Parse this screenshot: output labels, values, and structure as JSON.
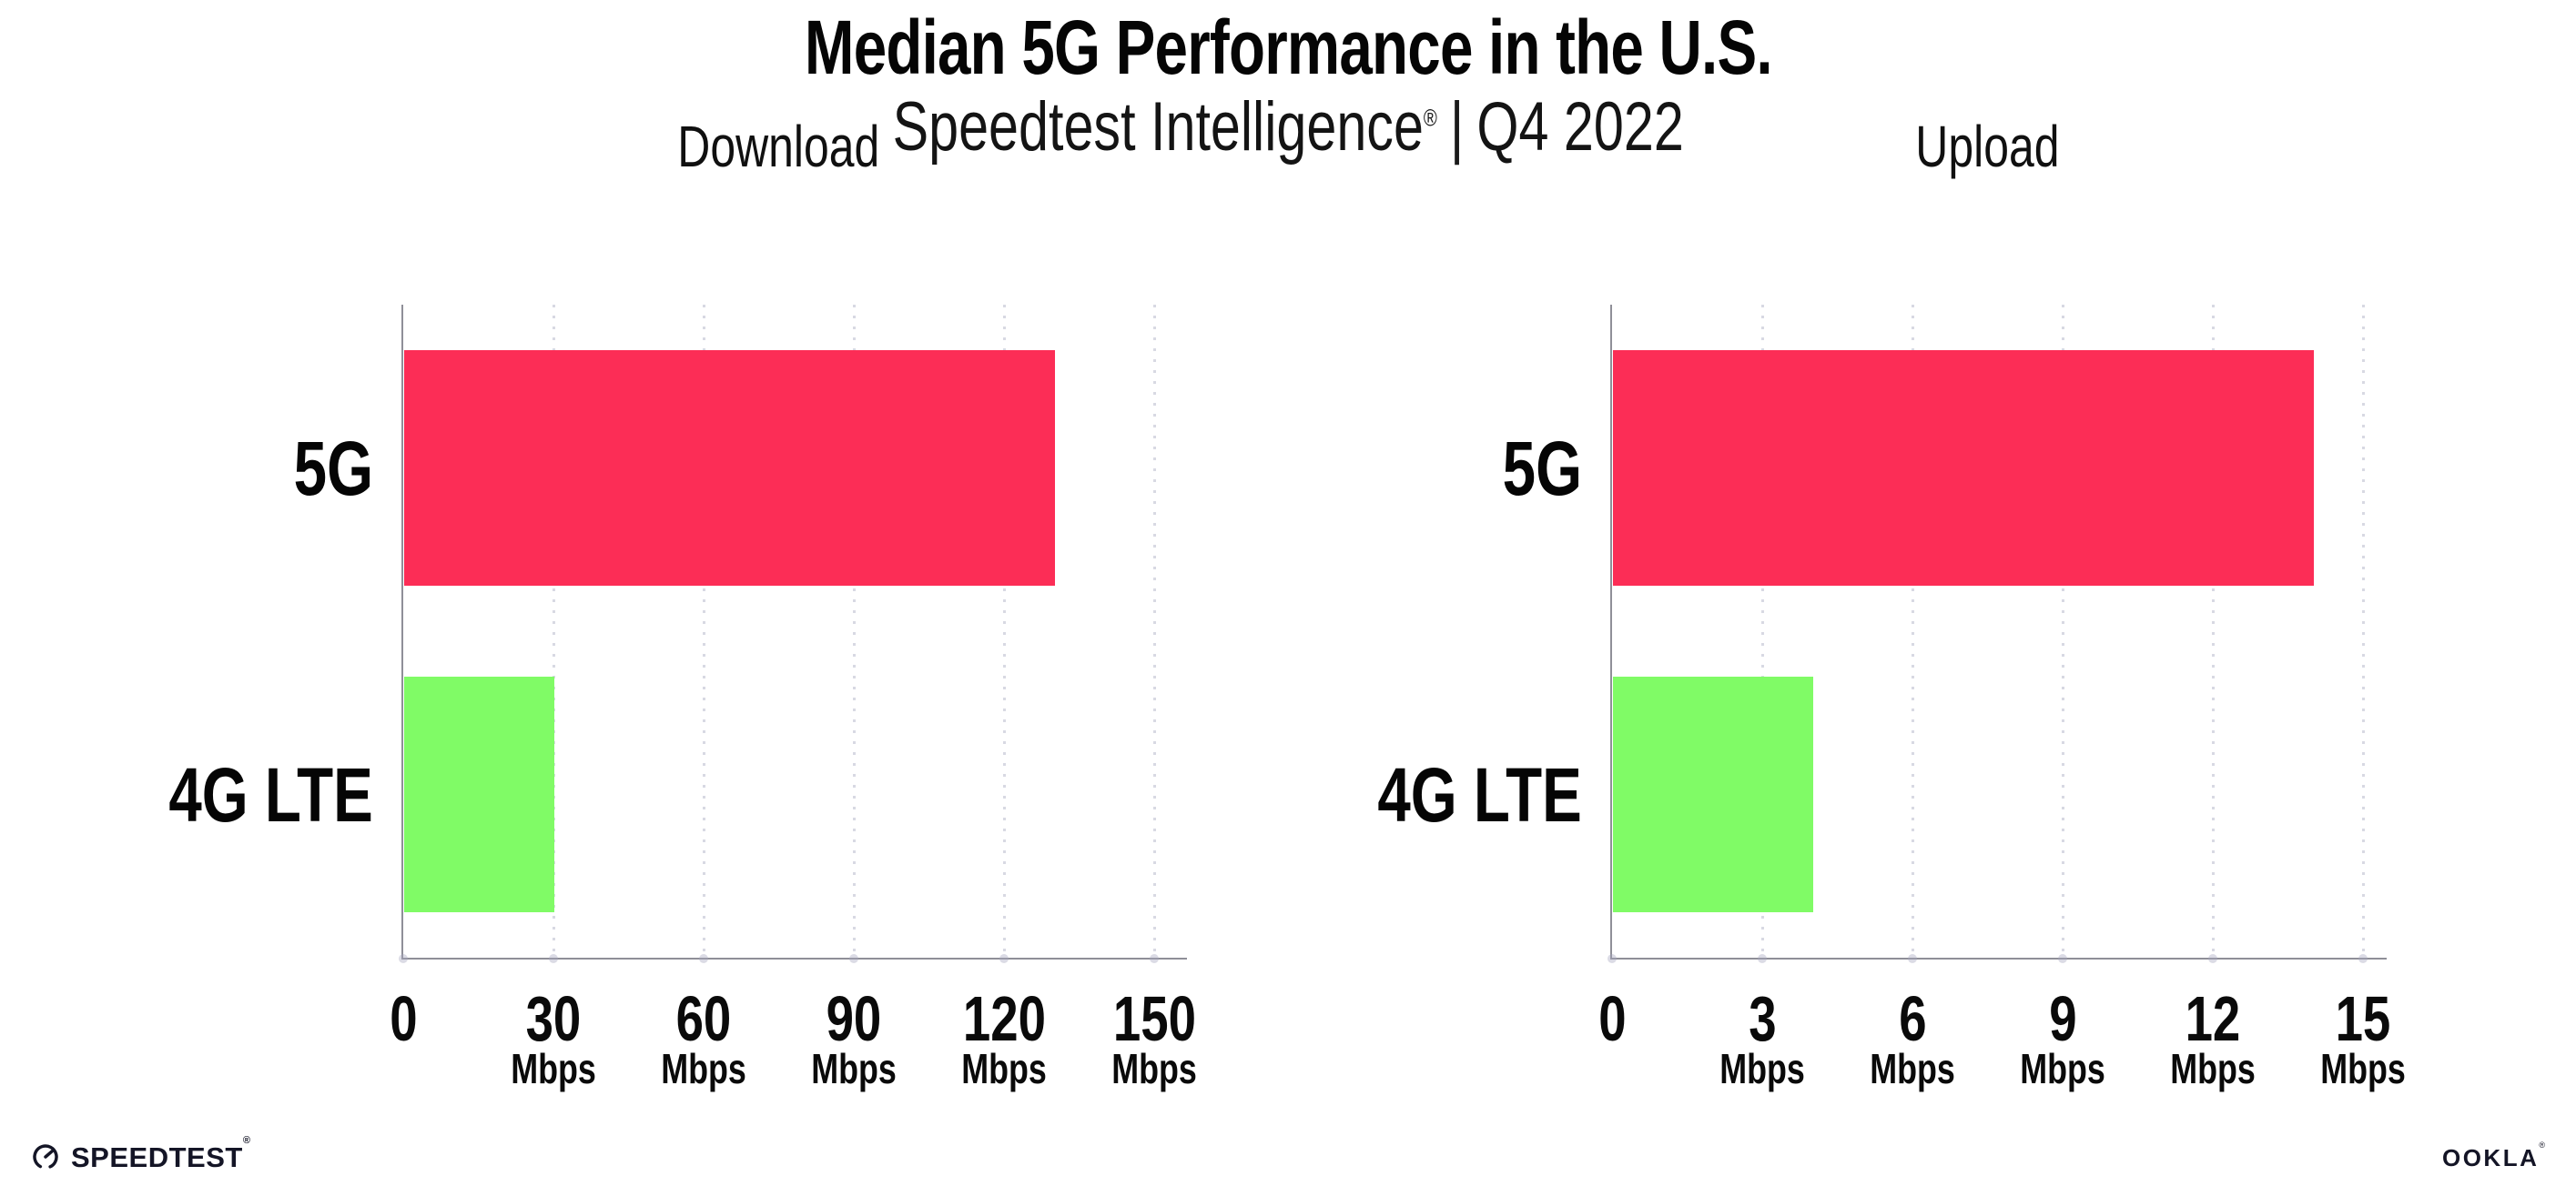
{
  "header": {
    "title": "Median 5G Performance in the U.S.",
    "subtitle_brand": "Speedtest Intelligence",
    "subtitle_reg": "®",
    "subtitle_separator": "|",
    "subtitle_period": "Q4 2022"
  },
  "chart_data": [
    {
      "type": "bar",
      "orientation": "horizontal",
      "title": "Download",
      "categories": [
        "5G",
        "4G LTE"
      ],
      "values": [
        130,
        30
      ],
      "unit": "Mbps",
      "xlim": [
        0,
        150
      ],
      "xticks": [
        0,
        30,
        60,
        90,
        120,
        150
      ],
      "bar_colors": [
        "#FC2D56",
        "#80FB66"
      ],
      "grid": "dotted-vertical",
      "legend": "none"
    },
    {
      "type": "bar",
      "orientation": "horizontal",
      "title": "Upload",
      "categories": [
        "5G",
        "4G LTE"
      ],
      "values": [
        14,
        4
      ],
      "unit": "Mbps",
      "xlim": [
        0,
        15
      ],
      "xticks": [
        0,
        3,
        6,
        9,
        12,
        15
      ],
      "bar_colors": [
        "#FC2D56",
        "#80FB66"
      ],
      "grid": "dotted-vertical",
      "legend": "none"
    }
  ],
  "footer": {
    "speedtest_label": "SPEEDTEST",
    "speedtest_reg": "®",
    "ookla_label": "OOKLA",
    "ookla_reg": "®"
  },
  "colors": {
    "bar_5g": "#FC2D56",
    "bar_4g_lte": "#80FB66",
    "axis": "#8f8f98",
    "grid_dot": "#d8d9e3",
    "text": "#0a0a0a",
    "logo": "#141526"
  }
}
